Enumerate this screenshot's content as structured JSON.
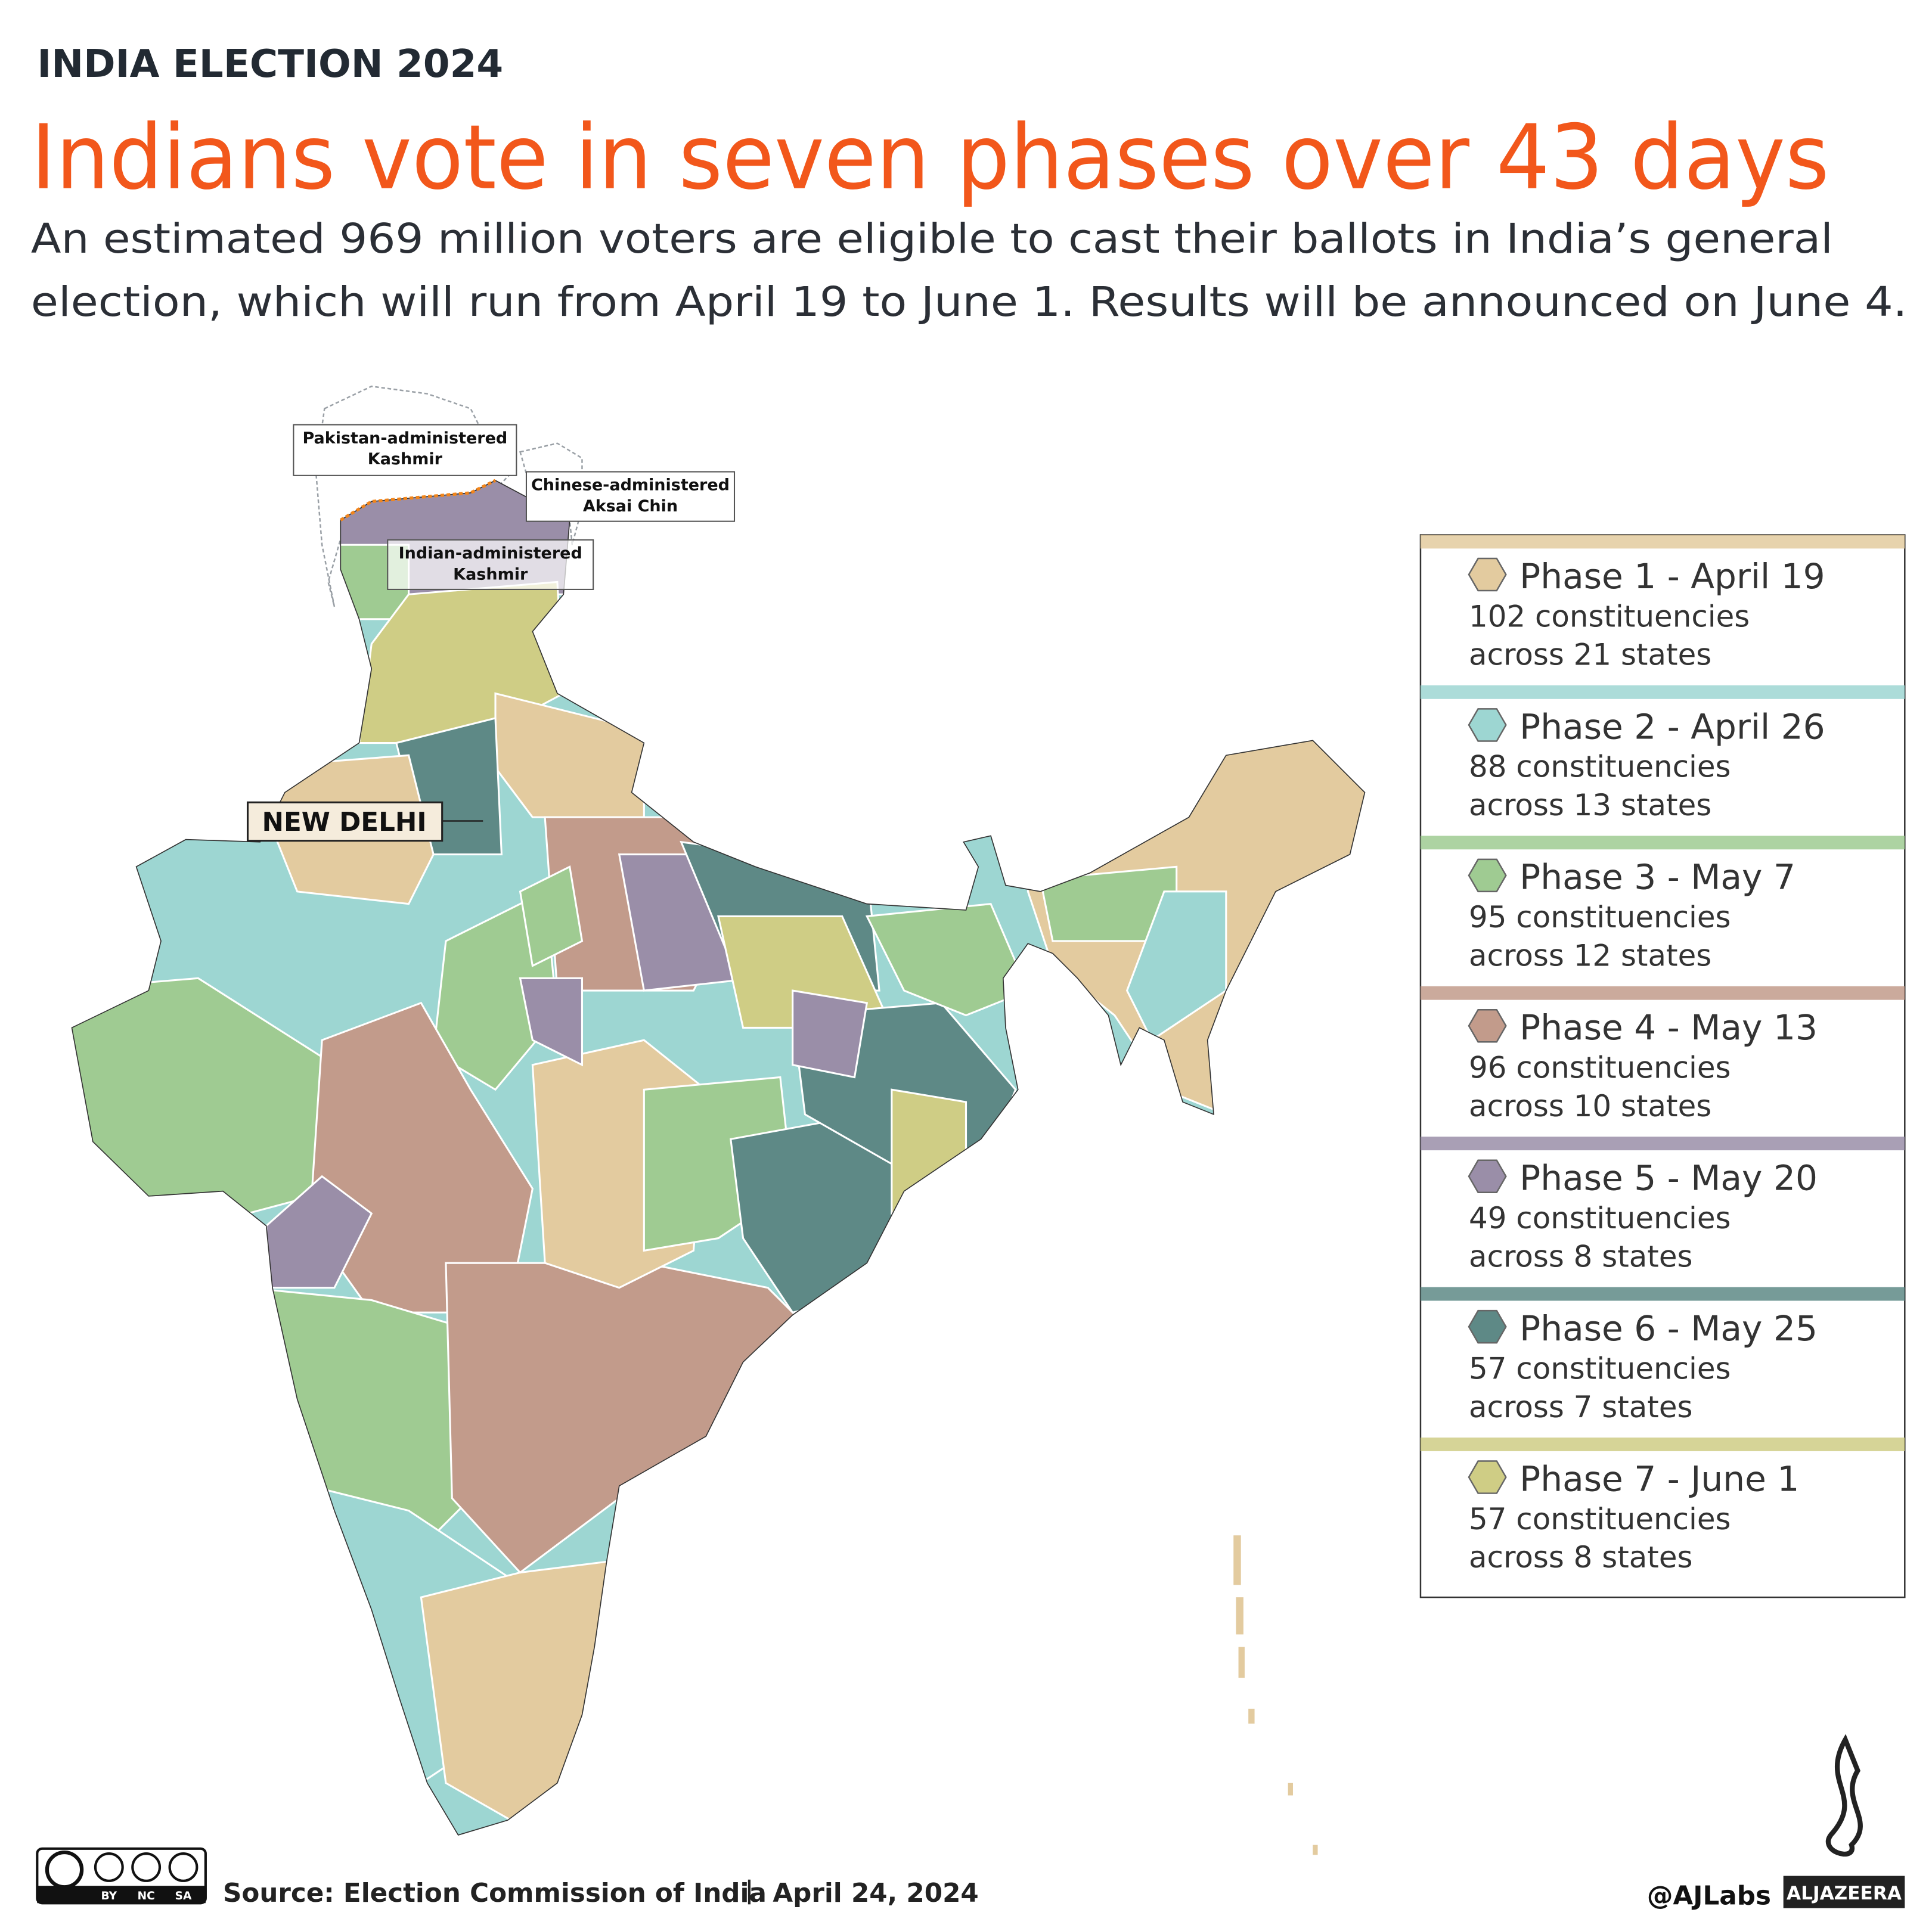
{
  "header": {
    "kicker": "INDIA ELECTION 2024",
    "title": "Indians vote in seven phases over 43 days",
    "subtitle": [
      "An estimated 969 million voters are eligible to cast their ballots in India’s general",
      "election, which will run from April 19 to June 1. Results will be announced on June 4."
    ]
  },
  "map": {
    "labels": [
      {
        "lines": [
          "Pakistan-administered",
          "Kashmir"
        ]
      },
      {
        "lines": [
          "Chinese-administered",
          "Aksai Chin"
        ]
      },
      {
        "lines": [
          "Indian-administered",
          "Kashmir"
        ]
      }
    ],
    "capital": "NEW DELHI"
  },
  "legend": {
    "items": [
      {
        "label": "Phase 1 - April 19",
        "constituencies": "102 constituencies",
        "states": "across 21 states",
        "color": "#e3cb9f"
      },
      {
        "label": "Phase 2 - April 26",
        "constituencies": "88 constituencies",
        "states": "across 13 states",
        "color": "#9dd6d2"
      },
      {
        "label": "Phase 3 - May 7",
        "constituencies": "95 constituencies",
        "states": "across 12 states",
        "color": "#9fcb92"
      },
      {
        "label": "Phase 4 - May 13",
        "constituencies": "96 constituencies",
        "states": "across 10 states",
        "color": "#c29b8b"
      },
      {
        "label": "Phase 5 - May 20",
        "constituencies": "49 constituencies",
        "states": "across 8 states",
        "color": "#9a8ea8"
      },
      {
        "label": "Phase 6 - May 25",
        "constituencies": "57 constituencies",
        "states": "across 7 states",
        "color": "#5e8986"
      },
      {
        "label": "Phase 7 - June 1",
        "constituencies": "57 constituencies",
        "states": "across 8 states",
        "color": "#cfcd85"
      }
    ]
  },
  "footer": {
    "license": [
      "BY",
      "NC",
      "SA"
    ],
    "source": "Source: Election Commission of India",
    "date": "April 24, 2024",
    "credit": "@AJLabs",
    "brand": "ALJAZEERA"
  }
}
